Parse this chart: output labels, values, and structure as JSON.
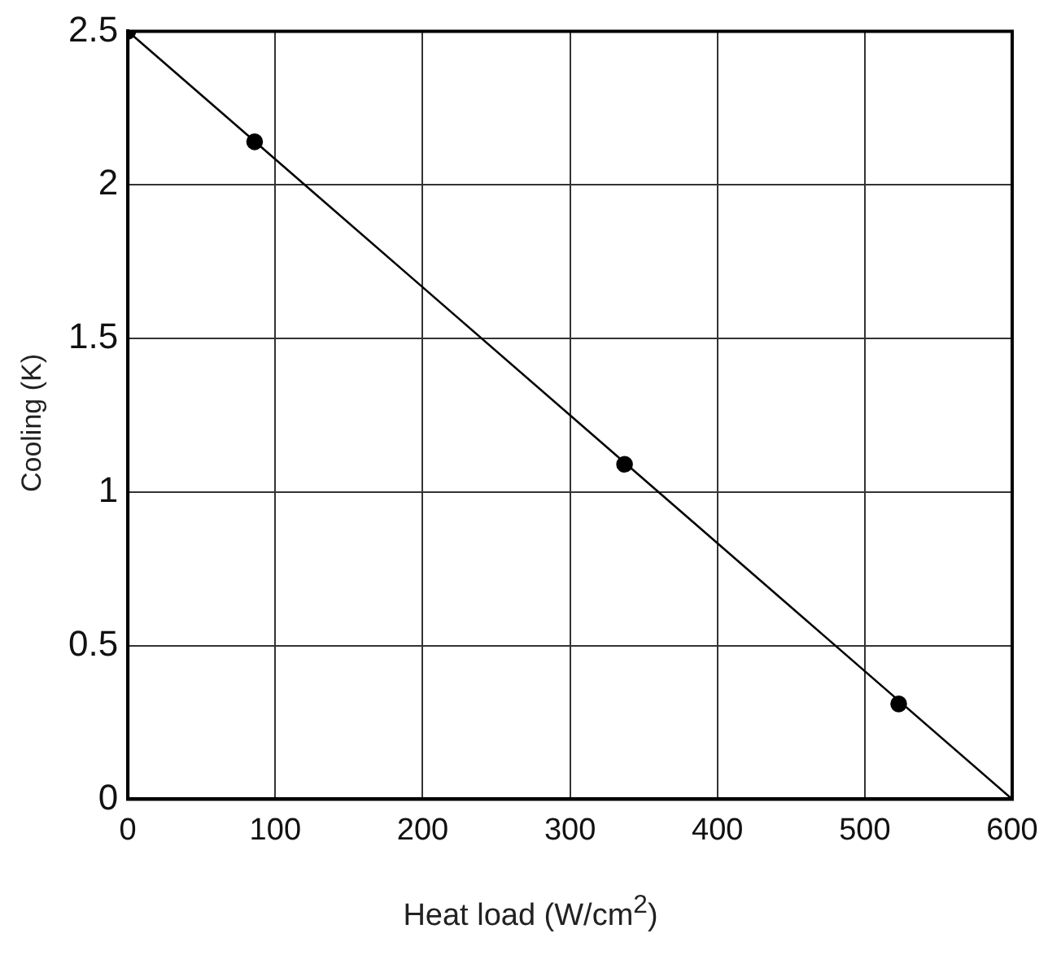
{
  "chart_data": {
    "type": "scatter",
    "xlabel": "Heat load (W/cm$^{2}$)",
    "ylabel": "Cooling (K)",
    "series": [
      {
        "color": "#000000",
        "x": [
          0,
          86,
          337,
          523
        ],
        "values": [
          2.5,
          2.14,
          1.09,
          0.31
        ],
        "marker": "circle"
      },
      {
        "type": "line",
        "color": "#000000",
        "x": [
          0,
          600
        ],
        "values": [
          2.5,
          0
        ],
        "marker": "none"
      }
    ],
    "xlim": [
      0,
      600
    ],
    "xticks": [
      0,
      100,
      200,
      300,
      400,
      500,
      600
    ],
    "ylim": [
      0,
      2.5
    ],
    "yticks": [
      0,
      0.5,
      1,
      1.5,
      2,
      2.5
    ],
    "grid": true,
    "legend": false
  }
}
